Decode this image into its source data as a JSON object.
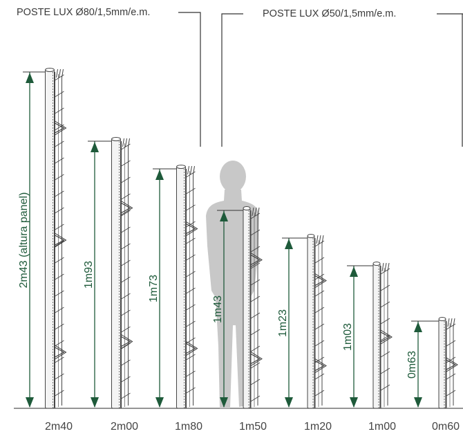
{
  "annotations": {
    "post_80": "POSTE LUX Ø80/1,5mm/e.m.",
    "post_50": "POSTE LUX Ø50/1,5mm/e.m."
  },
  "colors": {
    "dimension": "#1e5a3a",
    "line": "#444444",
    "silhouette": "#c8c8c8",
    "post_fill": "#f4f4f4"
  },
  "panels": [
    {
      "panel_label": "2m43 (altura panel)",
      "post_label": "2m40",
      "panel_height_m": 2.43,
      "post": "80"
    },
    {
      "panel_label": "1m93",
      "post_label": "2m00",
      "panel_height_m": 1.93,
      "post": "80"
    },
    {
      "panel_label": "1m73",
      "post_label": "1m80",
      "panel_height_m": 1.73,
      "post": "80"
    },
    {
      "panel_label": "1m43",
      "post_label": "1m50",
      "panel_height_m": 1.43,
      "post": "50"
    },
    {
      "panel_label": "1m23",
      "post_label": "1m20",
      "panel_height_m": 1.23,
      "post": "50"
    },
    {
      "panel_label": "1m03",
      "post_label": "1m00",
      "panel_height_m": 1.03,
      "post": "50"
    },
    {
      "panel_label": "0m63",
      "post_label": "0m60",
      "panel_height_m": 0.63,
      "post": "50"
    }
  ]
}
